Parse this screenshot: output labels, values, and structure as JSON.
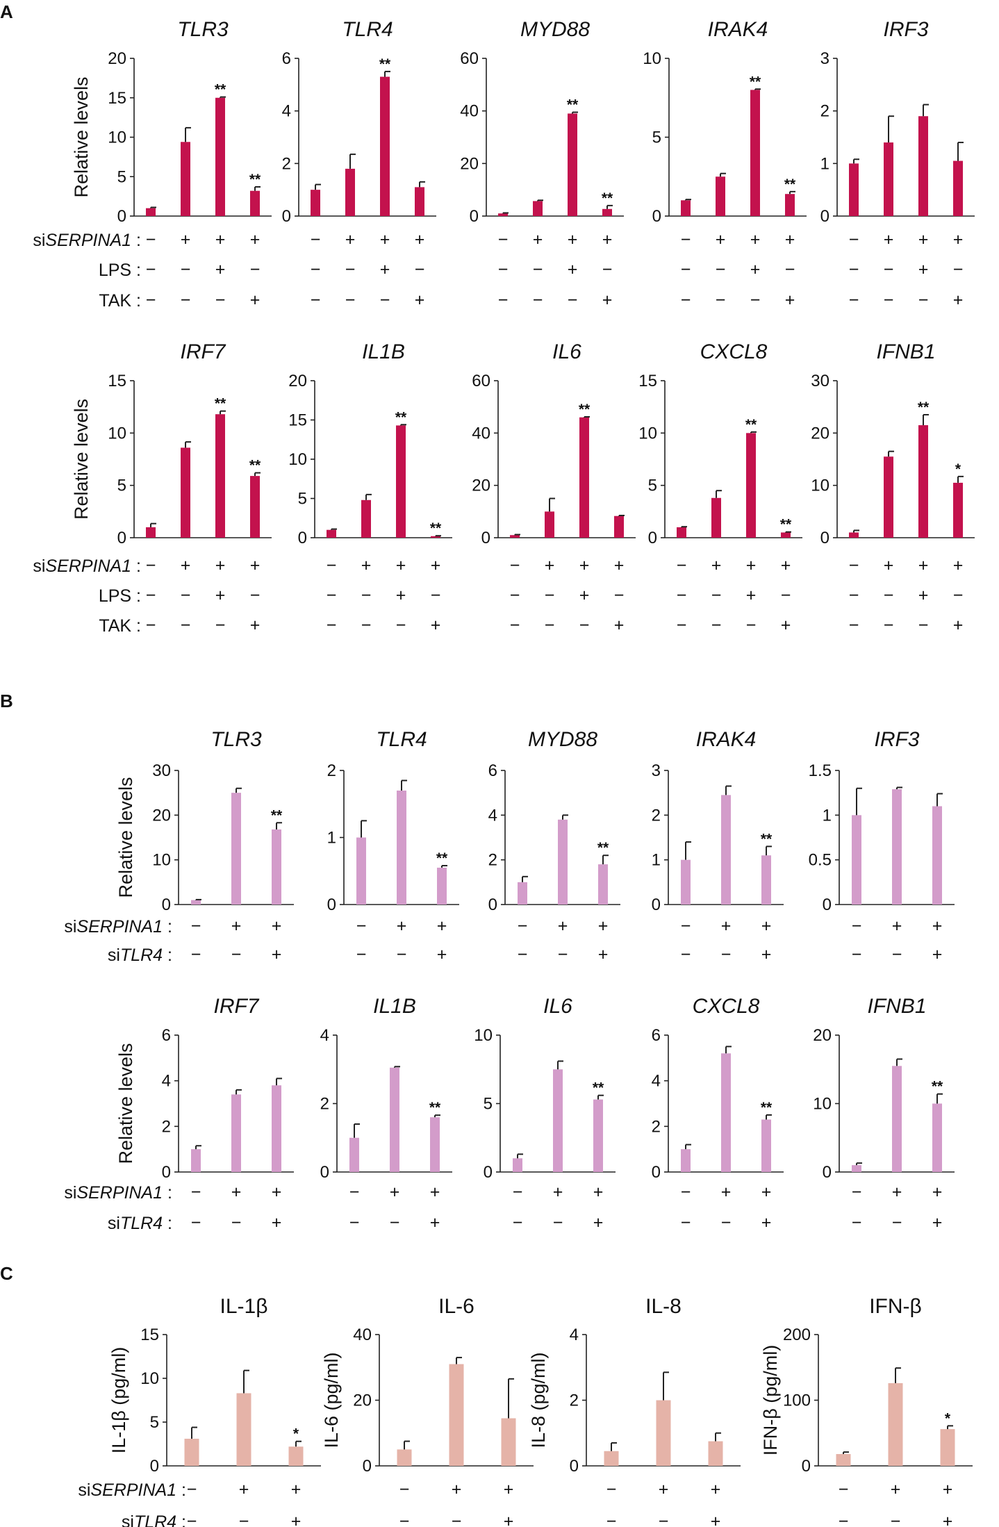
{
  "colors": {
    "panelA": "#c3124d",
    "panelB": "#d39cca",
    "panelC": "#e5b3a8"
  },
  "panels": [
    {
      "letter": "A",
      "conditions": [
        {
          "label_prefix": "si",
          "label_gene": "SERPINA1",
          "label_suffix": " :",
          "signs": [
            "−",
            "+",
            "+",
            "+"
          ]
        },
        {
          "label_prefix": "",
          "label_gene": "",
          "label_suffix": "LPS :",
          "signs": [
            "−",
            "−",
            "+",
            "−"
          ]
        },
        {
          "label_prefix": "",
          "label_gene": "",
          "label_suffix": "TAK :",
          "signs": [
            "−",
            "−",
            "−",
            "+"
          ]
        }
      ]
    },
    {
      "letter": "B",
      "conditions": [
        {
          "label_prefix": "si",
          "label_gene": "SERPINA1",
          "label_suffix": " :",
          "signs": [
            "−",
            "+",
            "+"
          ]
        },
        {
          "label_prefix": "si",
          "label_gene": "TLR4",
          "label_suffix": " :",
          "signs": [
            "−",
            "−",
            "+"
          ]
        }
      ]
    },
    {
      "letter": "C",
      "conditions": [
        {
          "label_prefix": "si",
          "label_gene": "SERPINA1",
          "label_suffix": " :",
          "signs": [
            "−",
            "+",
            "+"
          ]
        },
        {
          "label_prefix": "si",
          "label_gene": "TLR4",
          "label_suffix": " :",
          "signs": [
            "−",
            "−",
            "+"
          ]
        }
      ]
    }
  ],
  "chart_data": [
    {
      "panel": "A",
      "type": "bar",
      "title": "TLR3",
      "ylabel": "Relative levels",
      "ylim": [
        0,
        20
      ],
      "yticks": [
        "0",
        "5",
        "10",
        "15",
        "20"
      ],
      "values": [
        1,
        9.4,
        15,
        3.2
      ],
      "errors": [
        0.1,
        1.8,
        0.1,
        0.5
      ],
      "significance": [
        "",
        "",
        "**",
        "**"
      ]
    },
    {
      "panel": "A",
      "type": "bar",
      "title": "TLR4",
      "ylabel": "",
      "ylim": [
        0,
        6
      ],
      "yticks": [
        "0",
        "2",
        "4",
        "6"
      ],
      "values": [
        1,
        1.8,
        5.3,
        1.1
      ],
      "errors": [
        0.2,
        0.55,
        0.2,
        0.2
      ],
      "significance": [
        "",
        "",
        "**",
        ""
      ]
    },
    {
      "panel": "A",
      "type": "bar",
      "title": "MYD88",
      "ylabel": "",
      "ylim": [
        0,
        60
      ],
      "yticks": [
        "0",
        "20",
        "40",
        "60"
      ],
      "values": [
        1,
        5.7,
        39,
        2.7
      ],
      "errors": [
        0.2,
        0.3,
        0.5,
        1.3
      ],
      "significance": [
        "",
        "",
        "**",
        "**"
      ]
    },
    {
      "panel": "A",
      "type": "bar",
      "title": "IRAK4",
      "ylabel": "",
      "ylim": [
        0,
        10
      ],
      "yticks": [
        "0",
        "5",
        "10"
      ],
      "values": [
        1,
        2.5,
        8,
        1.4
      ],
      "errors": [
        0.05,
        0.2,
        0.05,
        0.15
      ],
      "significance": [
        "",
        "",
        "**",
        "**"
      ]
    },
    {
      "panel": "A",
      "type": "bar",
      "title": "IRF3",
      "ylabel": "",
      "ylim": [
        0,
        3
      ],
      "yticks": [
        "0",
        "1",
        "2",
        "3"
      ],
      "values": [
        1,
        1.4,
        1.9,
        1.05
      ],
      "errors": [
        0.08,
        0.5,
        0.22,
        0.35
      ],
      "significance": [
        "",
        "",
        "",
        ""
      ]
    },
    {
      "panel": "A",
      "type": "bar",
      "title": "IRF7",
      "ylabel": "Relative levels",
      "ylim": [
        0,
        15
      ],
      "yticks": [
        "0",
        "5",
        "10",
        "15"
      ],
      "values": [
        1,
        8.6,
        11.8,
        5.9
      ],
      "errors": [
        0.35,
        0.55,
        0.3,
        0.3
      ],
      "significance": [
        "",
        "",
        "**",
        "**"
      ]
    },
    {
      "panel": "A",
      "type": "bar",
      "title": "IL1B",
      "ylabel": "",
      "ylim": [
        0,
        20
      ],
      "yticks": [
        "0",
        "5",
        "10",
        "15",
        "20"
      ],
      "values": [
        1,
        4.8,
        14.3,
        0.2
      ],
      "errors": [
        0.1,
        0.7,
        0.1,
        0.05
      ],
      "significance": [
        "",
        "",
        "**",
        "**"
      ]
    },
    {
      "panel": "A",
      "type": "bar",
      "title": "IL6",
      "ylabel": "",
      "ylim": [
        0,
        60
      ],
      "yticks": [
        "0",
        "20",
        "40",
        "60"
      ],
      "values": [
        1,
        10,
        46,
        8.3
      ],
      "errors": [
        0.2,
        5,
        0.2,
        0.2
      ],
      "significance": [
        "",
        "",
        "**",
        ""
      ]
    },
    {
      "panel": "A",
      "type": "bar",
      "title": "CXCL8",
      "ylabel": "",
      "ylim": [
        0,
        15
      ],
      "yticks": [
        "0",
        "5",
        "10",
        "15"
      ],
      "values": [
        1,
        3.8,
        10,
        0.5
      ],
      "errors": [
        0.05,
        0.7,
        0.1,
        0.05
      ],
      "significance": [
        "",
        "",
        "**",
        "**"
      ]
    },
    {
      "panel": "A",
      "type": "bar",
      "title": "IFNB1",
      "ylabel": "",
      "ylim": [
        0,
        30
      ],
      "yticks": [
        "0",
        "10",
        "20",
        "30"
      ],
      "values": [
        1,
        15.5,
        21.5,
        10.5
      ],
      "errors": [
        0.4,
        1,
        2,
        1.2
      ],
      "significance": [
        "",
        "",
        "**",
        "*"
      ]
    },
    {
      "panel": "B",
      "type": "bar",
      "title": "TLR3",
      "ylabel": "Relative levels",
      "ylim": [
        0,
        30
      ],
      "yticks": [
        "0",
        "10",
        "20",
        "30"
      ],
      "values": [
        1,
        25,
        16.8
      ],
      "errors": [
        0.1,
        1,
        1.5
      ],
      "significance": [
        "",
        "",
        "**"
      ]
    },
    {
      "panel": "B",
      "type": "bar",
      "title": "TLR4",
      "ylabel": "",
      "ylim": [
        0,
        2
      ],
      "yticks": [
        "0",
        "1",
        "2"
      ],
      "values": [
        1,
        1.7,
        0.55
      ],
      "errors": [
        0.25,
        0.15,
        0.03
      ],
      "significance": [
        "",
        "",
        "**"
      ]
    },
    {
      "panel": "B",
      "type": "bar",
      "title": "MYD88",
      "ylabel": "",
      "ylim": [
        0,
        6
      ],
      "yticks": [
        "0",
        "2",
        "4",
        "6"
      ],
      "values": [
        1,
        3.8,
        1.8
      ],
      "errors": [
        0.25,
        0.2,
        0.4
      ],
      "significance": [
        "",
        "",
        "**"
      ]
    },
    {
      "panel": "B",
      "type": "bar",
      "title": "IRAK4",
      "ylabel": "",
      "ylim": [
        0,
        3
      ],
      "yticks": [
        "0",
        "1",
        "2",
        "3"
      ],
      "values": [
        1,
        2.45,
        1.1
      ],
      "errors": [
        0.4,
        0.2,
        0.2
      ],
      "significance": [
        "",
        "",
        "**"
      ]
    },
    {
      "panel": "B",
      "type": "bar",
      "title": "IRF3",
      "ylabel": "",
      "ylim": [
        0,
        1.5
      ],
      "yticks": [
        "0",
        "0.5",
        "1",
        "1.5"
      ],
      "values": [
        1,
        1.29,
        1.1
      ],
      "errors": [
        0.3,
        0.02,
        0.14
      ],
      "significance": [
        "",
        "",
        ""
      ]
    },
    {
      "panel": "B",
      "type": "bar",
      "title": "IRF7",
      "ylabel": "Relative levels",
      "ylim": [
        0,
        6
      ],
      "yticks": [
        "0",
        "2",
        "4",
        "6"
      ],
      "values": [
        1,
        3.4,
        3.8
      ],
      "errors": [
        0.15,
        0.2,
        0.3
      ],
      "significance": [
        "",
        "",
        ""
      ]
    },
    {
      "panel": "B",
      "type": "bar",
      "title": "IL1B",
      "ylabel": "",
      "ylim": [
        0,
        4
      ],
      "yticks": [
        "0",
        "2",
        "4"
      ],
      "values": [
        1,
        3.05,
        1.6
      ],
      "errors": [
        0.4,
        0.03,
        0.06
      ],
      "significance": [
        "",
        "",
        "**"
      ]
    },
    {
      "panel": "B",
      "type": "bar",
      "title": "IL6",
      "ylabel": "",
      "ylim": [
        0,
        10
      ],
      "yticks": [
        "0",
        "5",
        "10"
      ],
      "values": [
        1,
        7.5,
        5.3
      ],
      "errors": [
        0.3,
        0.6,
        0.3
      ],
      "significance": [
        "",
        "",
        "**"
      ]
    },
    {
      "panel": "B",
      "type": "bar",
      "title": "CXCL8",
      "ylabel": "",
      "ylim": [
        0,
        6
      ],
      "yticks": [
        "0",
        "2",
        "4",
        "6"
      ],
      "values": [
        1,
        5.2,
        2.3
      ],
      "errors": [
        0.2,
        0.3,
        0.2
      ],
      "significance": [
        "",
        "",
        "**"
      ]
    },
    {
      "panel": "B",
      "type": "bar",
      "title": "IFNB1",
      "ylabel": "",
      "ylim": [
        0,
        20
      ],
      "yticks": [
        "0",
        "10",
        "20"
      ],
      "values": [
        1,
        15.5,
        10
      ],
      "errors": [
        0.3,
        1,
        1.4
      ],
      "significance": [
        "",
        "",
        "**"
      ]
    },
    {
      "panel": "C",
      "type": "bar",
      "title": "IL-1β",
      "ylabel": "IL-1β (pg/ml)",
      "ylim": [
        0,
        15
      ],
      "yticks": [
        "0",
        "5",
        "10",
        "15"
      ],
      "values": [
        3.1,
        8.3,
        2.2
      ],
      "errors": [
        1.3,
        2.6,
        0.6
      ],
      "significance": [
        "",
        "",
        "*"
      ]
    },
    {
      "panel": "C",
      "type": "bar",
      "title": "IL-6",
      "ylabel": "IL-6 (pg/ml)",
      "ylim": [
        0,
        40
      ],
      "yticks": [
        "0",
        "20",
        "40"
      ],
      "values": [
        5,
        31,
        14.5
      ],
      "errors": [
        2.5,
        2,
        12
      ],
      "significance": [
        "",
        "",
        ""
      ]
    },
    {
      "panel": "C",
      "type": "bar",
      "title": "IL-8",
      "ylabel": "IL-8 (pg/ml)",
      "ylim": [
        0,
        4
      ],
      "yticks": [
        "0",
        "2",
        "4"
      ],
      "values": [
        0.45,
        2,
        0.75
      ],
      "errors": [
        0.25,
        0.85,
        0.25
      ],
      "significance": [
        "",
        "",
        ""
      ]
    },
    {
      "panel": "C",
      "type": "bar",
      "title": "IFN-β",
      "ylabel": "IFN-β (pg/ml)",
      "ylim": [
        0,
        200
      ],
      "yticks": [
        "0",
        "100",
        "200"
      ],
      "values": [
        18,
        126,
        56
      ],
      "errors": [
        3,
        23,
        5
      ],
      "significance": [
        "",
        "",
        "*"
      ]
    }
  ]
}
